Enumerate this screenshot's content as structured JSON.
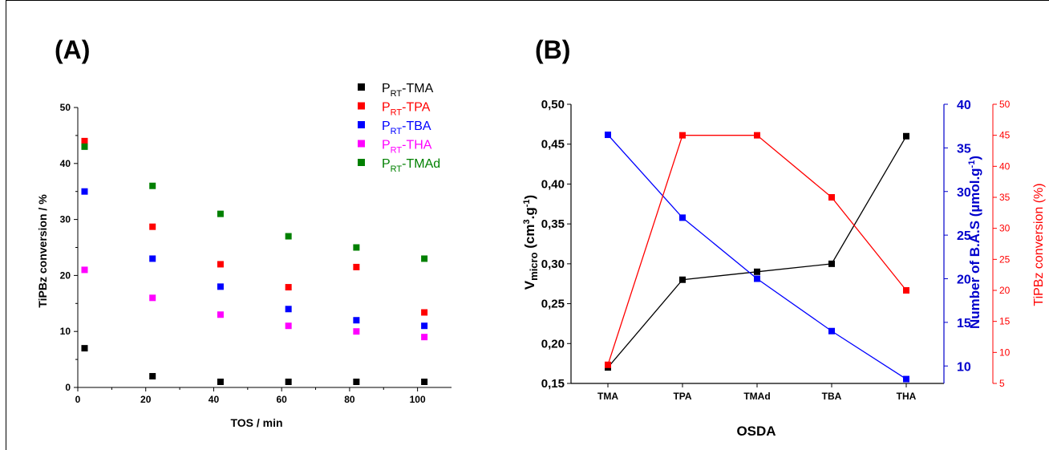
{
  "chart_data": [
    {
      "panel": "(A)",
      "type": "scatter",
      "title": "",
      "xlabel": "TOS / min",
      "ylabel": "TiPBz conversion / %",
      "xlim": [
        0,
        110
      ],
      "ylim": [
        0,
        50
      ],
      "x_ticks": [
        0,
        20,
        40,
        60,
        80,
        100
      ],
      "y_ticks": [
        0,
        10,
        20,
        30,
        40,
        50
      ],
      "x": [
        2,
        22,
        42,
        62,
        82,
        102
      ],
      "legend_position": "top-right",
      "grid": false,
      "series": [
        {
          "name": "TMA",
          "prefix": "P",
          "subscript": "RT",
          "color": "#000000",
          "values": [
            7,
            2,
            1,
            1,
            1,
            1
          ]
        },
        {
          "name": "TPA",
          "prefix": "P",
          "subscript": "RT",
          "color": "#ff0000",
          "values": [
            44,
            28.7,
            22,
            17.9,
            21.5,
            13.4
          ]
        },
        {
          "name": "TBA",
          "prefix": "P",
          "subscript": "RT",
          "color": "#0000ff",
          "values": [
            35,
            23,
            18,
            14,
            12,
            11
          ]
        },
        {
          "name": "THA",
          "prefix": "P",
          "subscript": "RT",
          "color": "#ff00ff",
          "values": [
            21,
            16,
            13,
            11,
            10,
            9
          ]
        },
        {
          "name": "TMAd",
          "prefix": "P",
          "subscript": "RT",
          "color": "#008000",
          "values": [
            43,
            36,
            31,
            27,
            25,
            23
          ]
        }
      ]
    },
    {
      "panel": "(B)",
      "type": "line",
      "title": "",
      "xlabel": "OSDA",
      "categories": [
        "TMA",
        "TPA",
        "TMAd",
        "TBA",
        "THA"
      ],
      "grid": false,
      "axes": [
        {
          "id": "left",
          "label_main": "V",
          "label_sub": "micro",
          "label_rest": " (cm",
          "label_sup": "3",
          "label_tail": ".g",
          "label_sup2": "-1",
          "label_end": ")",
          "color": "#000000",
          "ylim": [
            0.15,
            0.5
          ],
          "ticks": [
            "0,15",
            "0,20",
            "0,25",
            "0,30",
            "0,35",
            "0,40",
            "0,45",
            "0,50"
          ],
          "tick_values": [
            0.15,
            0.2,
            0.25,
            0.3,
            0.35,
            0.4,
            0.45,
            0.5
          ]
        },
        {
          "id": "right1",
          "label_main": "Number of B.A.S (µmol.g",
          "label_sup": "-1",
          "label_end": ")",
          "color": "#0000cc",
          "ylim": [
            8,
            40
          ],
          "ticks": [
            "10",
            "15",
            "20",
            "25",
            "30",
            "35",
            "40"
          ],
          "tick_values": [
            10,
            15,
            20,
            25,
            30,
            35,
            40
          ]
        },
        {
          "id": "right2",
          "label_main": "TiPBz conversion (%)",
          "color": "#ff0000",
          "ylim": [
            5,
            50
          ],
          "ticks": [
            "5",
            "10",
            "15",
            "20",
            "25",
            "30",
            "35",
            "40",
            "45",
            "50"
          ],
          "tick_values": [
            5,
            10,
            15,
            20,
            25,
            30,
            35,
            40,
            45,
            50
          ]
        }
      ],
      "series": [
        {
          "axis": "left",
          "color": "#000000",
          "values": [
            0.17,
            0.28,
            0.29,
            0.3,
            0.46
          ]
        },
        {
          "axis": "right1",
          "color": "#0000ff",
          "values": [
            36.5,
            27,
            20,
            14,
            8.5
          ]
        },
        {
          "axis": "right2",
          "color": "#ff0000",
          "values": [
            8,
            45,
            45,
            35,
            20
          ]
        }
      ]
    }
  ]
}
